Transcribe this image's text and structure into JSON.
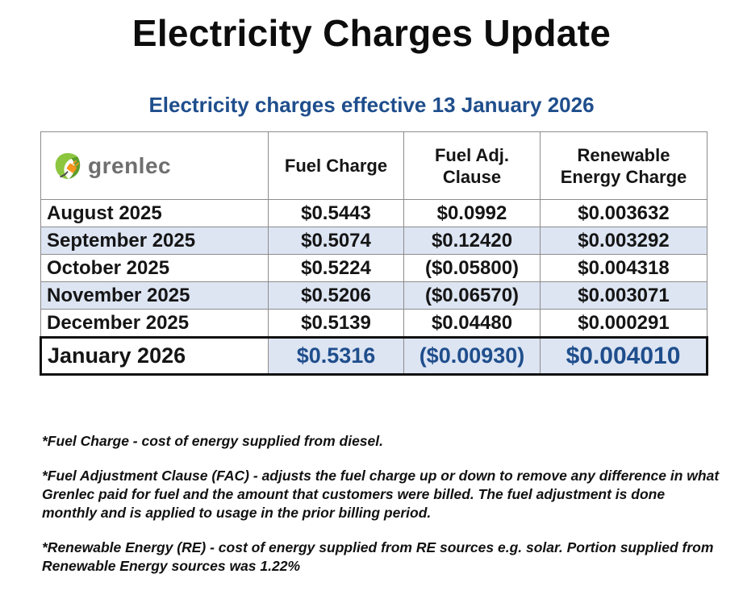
{
  "title": "Electricity Charges Update",
  "subtitle": "Electricity charges effective 13 January 2026",
  "logo": {
    "text": "grenlec",
    "icon": "plug-leaf-icon",
    "colors": {
      "leaf": "#8cc63f",
      "leaf_dark": "#5e9e2b",
      "plug": "#f7941d",
      "text": "#6f6f6f"
    }
  },
  "table": {
    "headers": {
      "fuel_charge": "Fuel Charge",
      "fuel_adj": "Fuel Adj. Clause",
      "renewable": "Renewable Energy Charge"
    },
    "rows": [
      {
        "month": "August 2025",
        "fuel_charge": "$0.5443",
        "fuel_adj": "$0.0992",
        "renewable": "$0.003632"
      },
      {
        "month": "September 2025",
        "fuel_charge": "$0.5074",
        "fuel_adj": "$0.12420",
        "renewable": "$0.003292"
      },
      {
        "month": "October 2025",
        "fuel_charge": "$0.5224",
        "fuel_adj": "($0.05800)",
        "renewable": "$0.004318"
      },
      {
        "month": "November 2025",
        "fuel_charge": "$0.5206",
        "fuel_adj": "($0.06570)",
        "renewable": "$0.003071"
      },
      {
        "month": "December 2025",
        "fuel_charge": "$0.5139",
        "fuel_adj": "$0.04480",
        "renewable": "$0.000291"
      }
    ],
    "current": {
      "month": "January 2026",
      "fuel_charge": "$0.5316",
      "fuel_adj": "($0.00930)",
      "renewable": "$0.004010"
    }
  },
  "notes": [
    "*Fuel Charge - cost of energy supplied from diesel.",
    "*Fuel Adjustment Clause (FAC) - adjusts the fuel charge up or down to remove any difference in what Grenlec paid for fuel and the amount that customers were billed. The fuel adjustment is done monthly and is applied to usage in the prior billing period.",
    "*Renewable Energy (RE) - cost of energy supplied from RE sources e.g. solar. Portion supplied from Renewable Energy sources was 1.22%"
  ],
  "colors": {
    "accent_blue": "#1f4e8c",
    "row_shade": "#dde5f3"
  }
}
